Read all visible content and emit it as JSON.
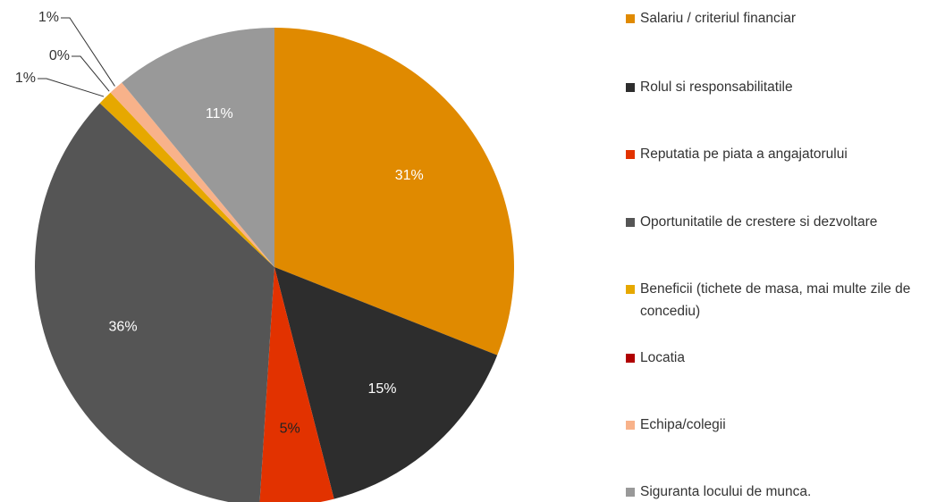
{
  "chart_data": {
    "type": "pie",
    "categories": [
      "Salariu / criteriul financiar",
      "Rolul si responsabilitatile",
      "Reputatia pe piata a angajatorului",
      "Oportunitatile de crestere si dezvoltare",
      "Beneficii (tichete de masa, mai multe zile de concediu)",
      "Locatia",
      "Echipa/colegii",
      "Siguranta locului de munca."
    ],
    "values": [
      31,
      15,
      5,
      36,
      1,
      0,
      1,
      11
    ],
    "value_labels": [
      "31%",
      "15%",
      "5%",
      "36%",
      "1%",
      "0%",
      "1%",
      "11%"
    ],
    "colors": [
      "#e08a00",
      "#2d2d2d",
      "#e23200",
      "#555555",
      "#e6a800",
      "#b00000",
      "#f8b28a",
      "#999999"
    ],
    "legend": "right"
  }
}
